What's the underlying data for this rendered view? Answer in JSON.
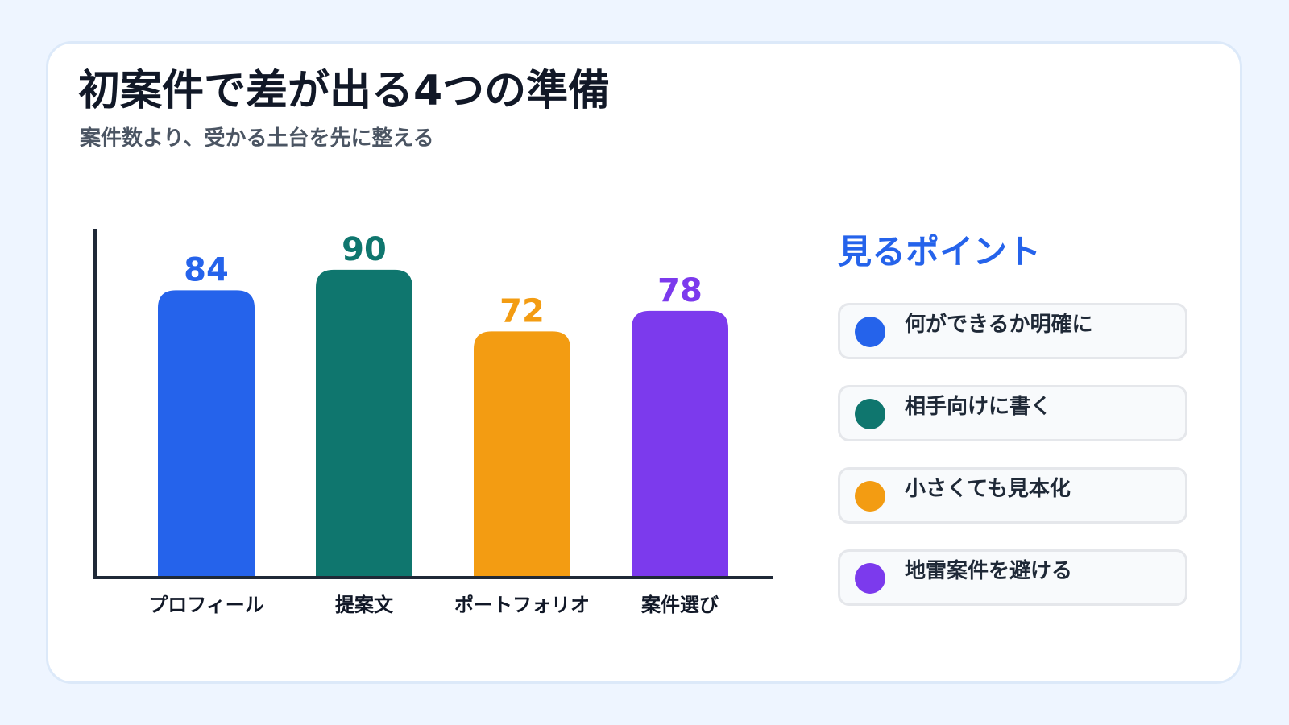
{
  "header": {
    "title": "初案件で差が出る4つの準備",
    "subtitle": "案件数より、受かる土台を先に整える"
  },
  "colors": {
    "background": "#eef5ff",
    "card": "#ffffff",
    "axis": "#1f2937",
    "blue": "#2563eb",
    "teal": "#0f766e",
    "orange": "#f39c12",
    "purple": "#7c3aed"
  },
  "chart_data": {
    "type": "bar",
    "categories": [
      "プロフィール",
      "提案文",
      "ポートフォリオ",
      "案件選び"
    ],
    "values": [
      84,
      90,
      72,
      78
    ],
    "colors": [
      "#2563eb",
      "#0f766e",
      "#f39c12",
      "#7c3aed"
    ],
    "title": "",
    "xlabel": "",
    "ylabel": "",
    "ylim": [
      0,
      110
    ],
    "grid": false,
    "data_labels": true
  },
  "legend": {
    "title": "見るポイント",
    "items": [
      {
        "label": "何ができるか明確に",
        "color": "#2563eb"
      },
      {
        "label": "相手向けに書く",
        "color": "#0f766e"
      },
      {
        "label": "小さくても見本化",
        "color": "#f39c12"
      },
      {
        "label": "地雷案件を避ける",
        "color": "#7c3aed"
      }
    ]
  }
}
